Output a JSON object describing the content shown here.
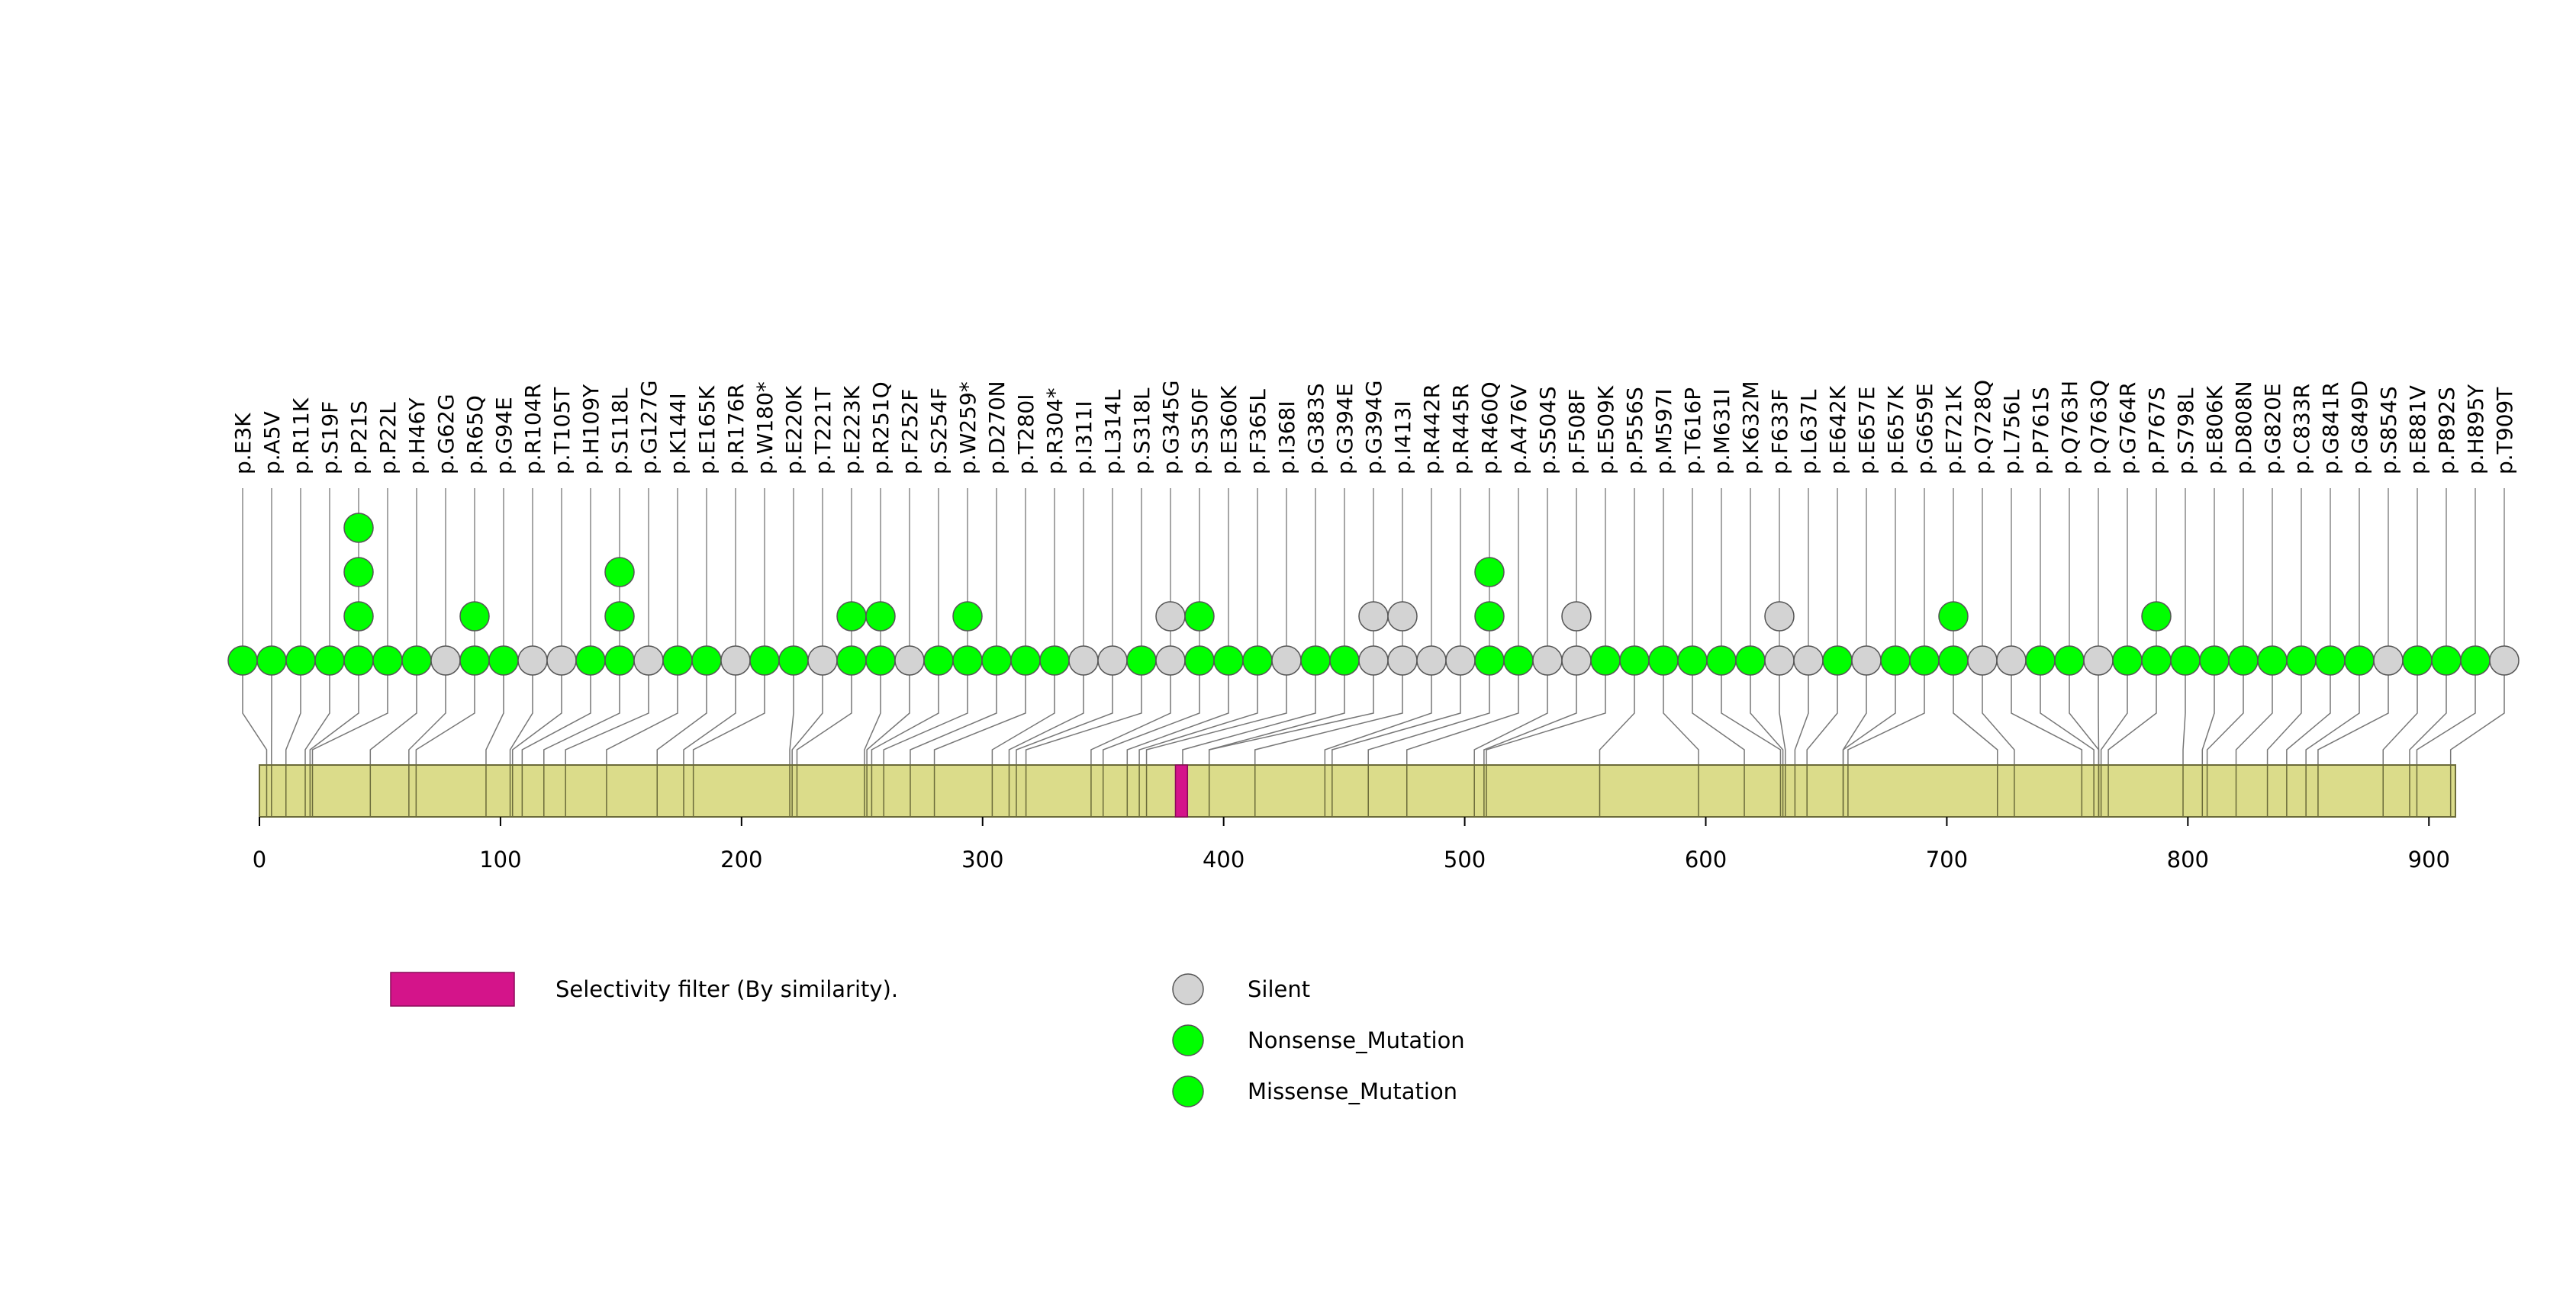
{
  "chart_data": {
    "type": "lollipop",
    "title": "",
    "xlabel": "",
    "ylabel": "",
    "xlim": [
      0,
      911
    ],
    "x_ticks": [
      0,
      100,
      200,
      300,
      400,
      500,
      600,
      700,
      800,
      900
    ],
    "protein_length": 911,
    "domains": [
      {
        "name": "Selectivity filter (By similarity).",
        "start": 380,
        "end": 385,
        "color": "#d4148a"
      }
    ],
    "categories": {
      "Silent": {
        "color": "#d3d3d3"
      },
      "Nonsense_Mutation": {
        "color": "#00ff00"
      },
      "Missense_Mutation": {
        "color": "#00ff00"
      }
    },
    "mutations": [
      {
        "label": "p.E3K",
        "pos": 3,
        "counts": [
          "Missense_Mutation"
        ]
      },
      {
        "label": "p.A5V",
        "pos": 5,
        "counts": [
          "Missense_Mutation"
        ]
      },
      {
        "label": "p.R11K",
        "pos": 11,
        "counts": [
          "Missense_Mutation"
        ]
      },
      {
        "label": "p.S19F",
        "pos": 19,
        "counts": [
          "Missense_Mutation"
        ]
      },
      {
        "label": "p.P21S",
        "pos": 21,
        "counts": [
          "Missense_Mutation",
          "Missense_Mutation",
          "Missense_Mutation",
          "Missense_Mutation"
        ]
      },
      {
        "label": "p.P22L",
        "pos": 22,
        "counts": [
          "Missense_Mutation"
        ]
      },
      {
        "label": "p.H46Y",
        "pos": 46,
        "counts": [
          "Missense_Mutation"
        ]
      },
      {
        "label": "p.G62G",
        "pos": 62,
        "counts": [
          "Silent"
        ]
      },
      {
        "label": "p.R65Q",
        "pos": 65,
        "counts": [
          "Missense_Mutation",
          "Missense_Mutation"
        ]
      },
      {
        "label": "p.G94E",
        "pos": 94,
        "counts": [
          "Missense_Mutation"
        ]
      },
      {
        "label": "p.R104R",
        "pos": 104,
        "counts": [
          "Silent"
        ]
      },
      {
        "label": "p.T105T",
        "pos": 105,
        "counts": [
          "Silent"
        ]
      },
      {
        "label": "p.H109Y",
        "pos": 109,
        "counts": [
          "Missense_Mutation"
        ]
      },
      {
        "label": "p.S118L",
        "pos": 118,
        "counts": [
          "Missense_Mutation",
          "Missense_Mutation",
          "Missense_Mutation"
        ]
      },
      {
        "label": "p.G127G",
        "pos": 127,
        "counts": [
          "Silent"
        ]
      },
      {
        "label": "p.K144I",
        "pos": 144,
        "counts": [
          "Missense_Mutation"
        ]
      },
      {
        "label": "p.E165K",
        "pos": 165,
        "counts": [
          "Missense_Mutation"
        ]
      },
      {
        "label": "p.R176R",
        "pos": 176,
        "counts": [
          "Silent"
        ]
      },
      {
        "label": "p.W180*",
        "pos": 180,
        "counts": [
          "Nonsense_Mutation"
        ]
      },
      {
        "label": "p.E220K",
        "pos": 220,
        "counts": [
          "Missense_Mutation"
        ]
      },
      {
        "label": "p.T221T",
        "pos": 221,
        "counts": [
          "Silent"
        ]
      },
      {
        "label": "p.E223K",
        "pos": 223,
        "counts": [
          "Missense_Mutation",
          "Missense_Mutation"
        ]
      },
      {
        "label": "p.R251Q",
        "pos": 251,
        "counts": [
          "Missense_Mutation",
          "Missense_Mutation"
        ]
      },
      {
        "label": "p.F252F",
        "pos": 252,
        "counts": [
          "Silent"
        ]
      },
      {
        "label": "p.S254F",
        "pos": 254,
        "counts": [
          "Missense_Mutation"
        ]
      },
      {
        "label": "p.W259*",
        "pos": 259,
        "counts": [
          "Nonsense_Mutation",
          "Nonsense_Mutation"
        ]
      },
      {
        "label": "p.D270N",
        "pos": 270,
        "counts": [
          "Missense_Mutation"
        ]
      },
      {
        "label": "p.T280I",
        "pos": 280,
        "counts": [
          "Missense_Mutation"
        ]
      },
      {
        "label": "p.R304*",
        "pos": 304,
        "counts": [
          "Nonsense_Mutation"
        ]
      },
      {
        "label": "p.I311I",
        "pos": 311,
        "counts": [
          "Silent"
        ]
      },
      {
        "label": "p.L314L",
        "pos": 314,
        "counts": [
          "Silent"
        ]
      },
      {
        "label": "p.S318L",
        "pos": 318,
        "counts": [
          "Missense_Mutation"
        ]
      },
      {
        "label": "p.G345G",
        "pos": 345,
        "counts": [
          "Silent",
          "Silent"
        ]
      },
      {
        "label": "p.S350F",
        "pos": 350,
        "counts": [
          "Missense_Mutation",
          "Missense_Mutation"
        ]
      },
      {
        "label": "p.E360K",
        "pos": 360,
        "counts": [
          "Missense_Mutation"
        ]
      },
      {
        "label": "p.F365L",
        "pos": 365,
        "counts": [
          "Missense_Mutation"
        ]
      },
      {
        "label": "p.I368I",
        "pos": 368,
        "counts": [
          "Silent"
        ]
      },
      {
        "label": "p.G383S",
        "pos": 383,
        "counts": [
          "Missense_Mutation"
        ]
      },
      {
        "label": "p.G394E",
        "pos": 394,
        "counts": [
          "Missense_Mutation"
        ]
      },
      {
        "label": "p.G394G",
        "pos": 394,
        "counts": [
          "Silent",
          "Silent"
        ]
      },
      {
        "label": "p.I413I",
        "pos": 413,
        "counts": [
          "Silent",
          "Silent"
        ]
      },
      {
        "label": "p.R442R",
        "pos": 442,
        "counts": [
          "Silent"
        ]
      },
      {
        "label": "p.R445R",
        "pos": 445,
        "counts": [
          "Silent"
        ]
      },
      {
        "label": "p.R460Q",
        "pos": 460,
        "counts": [
          "Missense_Mutation",
          "Missense_Mutation",
          "Missense_Mutation"
        ]
      },
      {
        "label": "p.A476V",
        "pos": 476,
        "counts": [
          "Missense_Mutation"
        ]
      },
      {
        "label": "p.S504S",
        "pos": 504,
        "counts": [
          "Silent"
        ]
      },
      {
        "label": "p.F508F",
        "pos": 508,
        "counts": [
          "Silent",
          "Silent"
        ]
      },
      {
        "label": "p.E509K",
        "pos": 509,
        "counts": [
          "Missense_Mutation"
        ]
      },
      {
        "label": "p.P556S",
        "pos": 556,
        "counts": [
          "Missense_Mutation"
        ]
      },
      {
        "label": "p.M597I",
        "pos": 597,
        "counts": [
          "Missense_Mutation"
        ]
      },
      {
        "label": "p.T616P",
        "pos": 616,
        "counts": [
          "Missense_Mutation"
        ]
      },
      {
        "label": "p.M631I",
        "pos": 631,
        "counts": [
          "Missense_Mutation"
        ]
      },
      {
        "label": "p.K632M",
        "pos": 632,
        "counts": [
          "Missense_Mutation"
        ]
      },
      {
        "label": "p.F633F",
        "pos": 633,
        "counts": [
          "Silent",
          "Silent"
        ]
      },
      {
        "label": "p.L637L",
        "pos": 637,
        "counts": [
          "Silent"
        ]
      },
      {
        "label": "p.E642K",
        "pos": 642,
        "counts": [
          "Missense_Mutation"
        ]
      },
      {
        "label": "p.E657E",
        "pos": 657,
        "counts": [
          "Silent"
        ]
      },
      {
        "label": "p.E657K",
        "pos": 657,
        "counts": [
          "Missense_Mutation"
        ]
      },
      {
        "label": "p.G659E",
        "pos": 659,
        "counts": [
          "Missense_Mutation"
        ]
      },
      {
        "label": "p.E721K",
        "pos": 721,
        "counts": [
          "Missense_Mutation",
          "Missense_Mutation"
        ]
      },
      {
        "label": "p.Q728Q",
        "pos": 728,
        "counts": [
          "Silent"
        ]
      },
      {
        "label": "p.L756L",
        "pos": 756,
        "counts": [
          "Silent"
        ]
      },
      {
        "label": "p.P761S",
        "pos": 761,
        "counts": [
          "Missense_Mutation"
        ]
      },
      {
        "label": "p.Q763H",
        "pos": 763,
        "counts": [
          "Missense_Mutation"
        ]
      },
      {
        "label": "p.Q763Q",
        "pos": 763,
        "counts": [
          "Silent"
        ]
      },
      {
        "label": "p.G764R",
        "pos": 764,
        "counts": [
          "Missense_Mutation"
        ]
      },
      {
        "label": "p.P767S",
        "pos": 767,
        "counts": [
          "Missense_Mutation",
          "Missense_Mutation"
        ]
      },
      {
        "label": "p.S798L",
        "pos": 798,
        "counts": [
          "Missense_Mutation"
        ]
      },
      {
        "label": "p.E806K",
        "pos": 806,
        "counts": [
          "Missense_Mutation"
        ]
      },
      {
        "label": "p.D808N",
        "pos": 808,
        "counts": [
          "Missense_Mutation"
        ]
      },
      {
        "label": "p.G820E",
        "pos": 820,
        "counts": [
          "Missense_Mutation"
        ]
      },
      {
        "label": "p.C833R",
        "pos": 833,
        "counts": [
          "Missense_Mutation"
        ]
      },
      {
        "label": "p.G841R",
        "pos": 841,
        "counts": [
          "Missense_Mutation"
        ]
      },
      {
        "label": "p.G849D",
        "pos": 849,
        "counts": [
          "Missense_Mutation"
        ]
      },
      {
        "label": "p.S854S",
        "pos": 854,
        "counts": [
          "Silent"
        ]
      },
      {
        "label": "p.E881V",
        "pos": 881,
        "counts": [
          "Missense_Mutation"
        ]
      },
      {
        "label": "p.P892S",
        "pos": 892,
        "counts": [
          "Missense_Mutation"
        ]
      },
      {
        "label": "p.H895Y",
        "pos": 895,
        "counts": [
          "Missense_Mutation"
        ]
      },
      {
        "label": "p.T909T",
        "pos": 909,
        "counts": [
          "Silent"
        ]
      }
    ],
    "legend": {
      "domains": [
        {
          "label": "Selectivity filter (By similarity).",
          "color": "#d4148a"
        }
      ],
      "categories": [
        {
          "label": "Silent",
          "color": "#d3d3d3"
        },
        {
          "label": "Nonsense_Mutation",
          "color": "#00ff00"
        },
        {
          "label": "Missense_Mutation",
          "color": "#00ff00"
        }
      ]
    }
  }
}
